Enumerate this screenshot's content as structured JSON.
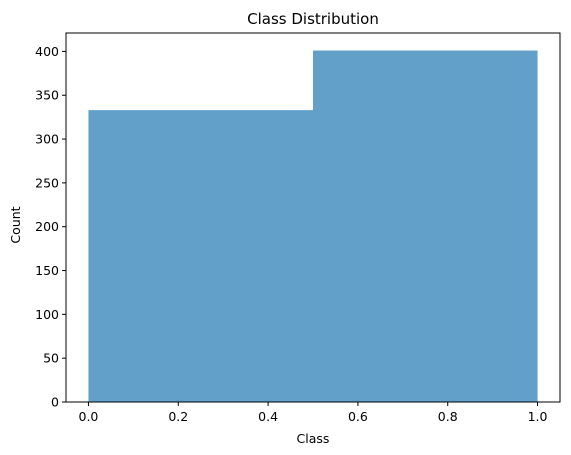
{
  "chart_data": {
    "type": "bar",
    "title": "Class Distribution",
    "xlabel": "Class",
    "ylabel": "Count",
    "bins": [
      {
        "x0": 0.0,
        "x1": 0.5,
        "value": 333
      },
      {
        "x0": 0.5,
        "x1": 1.0,
        "value": 401
      }
    ],
    "xlim": [
      -0.05,
      1.05
    ],
    "ylim": [
      0,
      421
    ],
    "xticks": [
      "0.0",
      "0.2",
      "0.4",
      "0.6",
      "0.8",
      "1.0"
    ],
    "yticks": [
      "0",
      "50",
      "100",
      "150",
      "200",
      "250",
      "300",
      "350",
      "400"
    ],
    "grid": false,
    "bar_color": "#1f77b4",
    "bar_alpha": 0.7
  }
}
